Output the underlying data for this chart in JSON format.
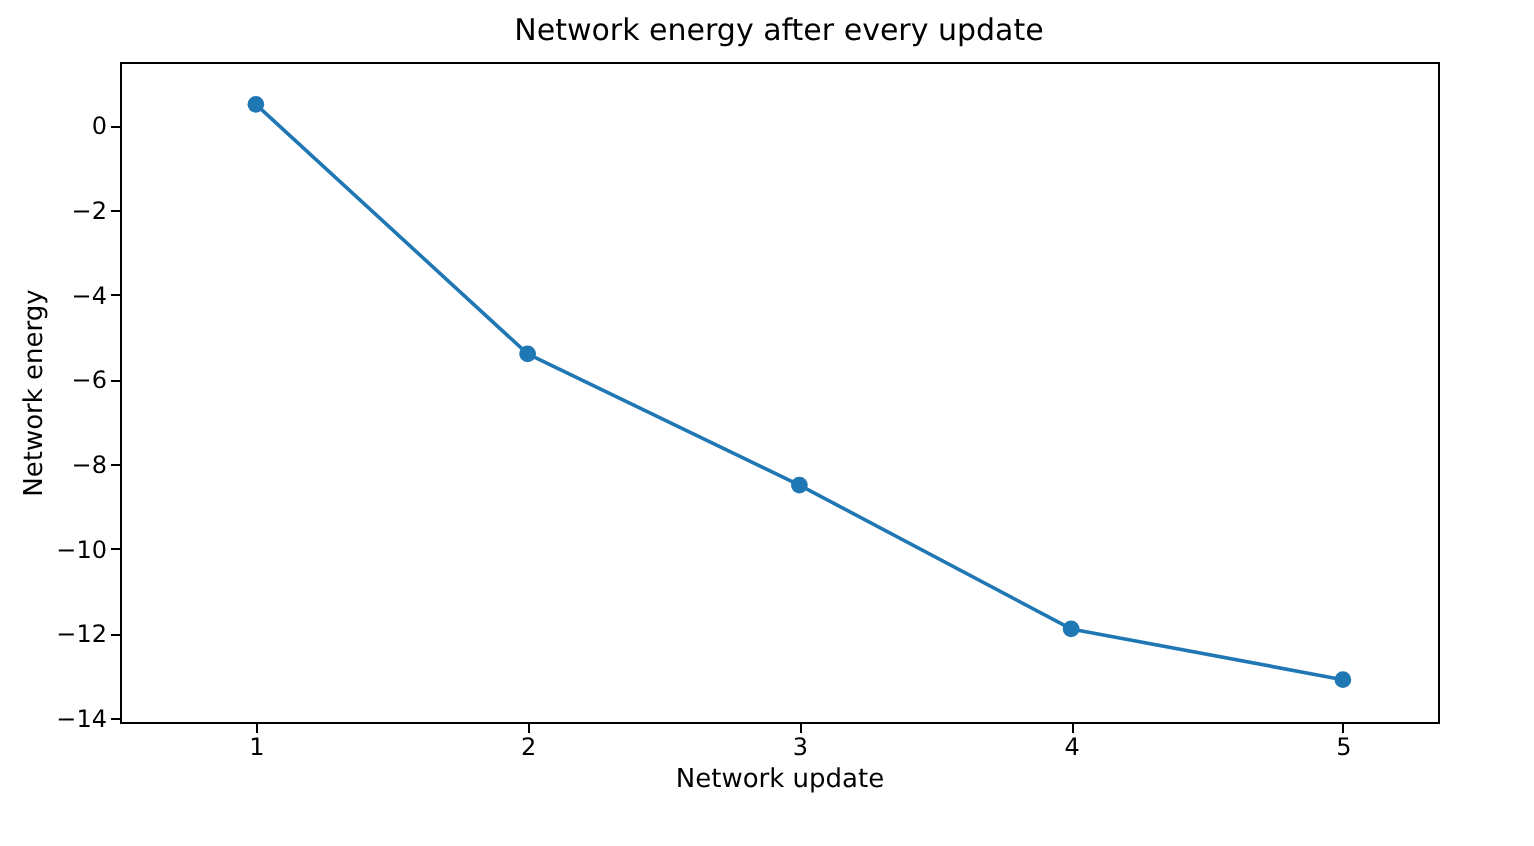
{
  "chart_data": {
    "type": "line",
    "title": "Network energy after every update",
    "xlabel": "Network update",
    "ylabel": "Network energy",
    "x": [
      1,
      2,
      3,
      4,
      5
    ],
    "series": [
      {
        "color": "#1f77b4",
        "values": [
          0.5,
          -5.4,
          -8.5,
          -11.9,
          -13.1
        ]
      }
    ],
    "xlim": [
      0.5,
      5.35
    ],
    "xticks": [
      1,
      2,
      3,
      4,
      5
    ],
    "ylim": [
      -14.1,
      1.5
    ],
    "yticks": [
      0,
      -2,
      -4,
      -6,
      -8,
      -10,
      -12,
      -14
    ],
    "marker": "circle",
    "grid": false
  }
}
